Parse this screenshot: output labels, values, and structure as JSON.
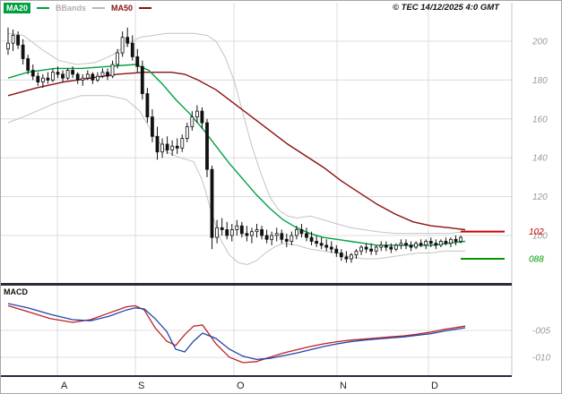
{
  "header": {
    "legend": [
      {
        "label": "MA20",
        "color": "#00a040"
      },
      {
        "label": "BBands",
        "color": "#b0b0b0"
      },
      {
        "label": "MA50",
        "color": "#8b1010"
      }
    ],
    "copyright": "© TEC 14/12/2025 4:0 GMT"
  },
  "colors": {
    "grid": "#dcdcdc",
    "axis_text": "#9a9a9a",
    "candle": "#111111",
    "ma20": "#00a040",
    "ma50": "#8b1010",
    "bband": "#c4c4c4",
    "macd_line": "#bb2222",
    "macd_signal": "#2244aa",
    "divider": "#2a2a3a",
    "month_text": "#222222"
  },
  "chart_data": [
    {
      "type": "candlestick",
      "title": "",
      "xlabel": "",
      "ylabel": "",
      "grid": true,
      "ylim": [
        83,
        212
      ],
      "y_ticks": [
        200,
        180,
        160,
        140,
        120,
        100
      ],
      "x_month_labels": [
        "A",
        "S",
        "O",
        "N",
        "D"
      ],
      "month_grid_x": [
        63,
        150,
        260,
        375,
        477
      ],
      "month_label_x": [
        67,
        153,
        263,
        378,
        480
      ],
      "levels": [
        {
          "label": "102",
          "value": 102,
          "color": "#cc0000"
        },
        {
          "label": "088",
          "value": 88,
          "color": "#009900"
        }
      ],
      "candles_ohlc": [
        [
          196,
          207,
          193,
          199
        ],
        [
          199,
          206,
          195,
          203
        ],
        [
          203,
          205,
          196,
          198
        ],
        [
          198,
          201,
          188,
          191
        ],
        [
          191,
          193,
          183,
          185
        ],
        [
          185,
          188,
          180,
          182
        ],
        [
          182,
          184,
          177,
          179
        ],
        [
          179,
          183,
          176,
          181
        ],
        [
          181,
          184,
          178,
          180
        ],
        [
          180,
          186,
          179,
          184
        ],
        [
          184,
          187,
          181,
          183
        ],
        [
          183,
          185,
          179,
          181
        ],
        [
          181,
          186,
          180,
          185
        ],
        [
          185,
          187,
          181,
          183
        ],
        [
          183,
          184,
          178,
          180
        ],
        [
          180,
          183,
          177,
          181
        ],
        [
          181,
          185,
          180,
          183
        ],
        [
          183,
          184,
          178,
          180
        ],
        [
          180,
          184,
          179,
          182
        ],
        [
          182,
          186,
          181,
          184
        ],
        [
          184,
          186,
          180,
          182
        ],
        [
          182,
          190,
          181,
          188
        ],
        [
          188,
          196,
          186,
          194
        ],
        [
          194,
          205,
          192,
          202
        ],
        [
          202,
          207,
          197,
          199
        ],
        [
          199,
          203,
          190,
          192
        ],
        [
          192,
          196,
          184,
          187
        ],
        [
          187,
          190,
          170,
          173
        ],
        [
          173,
          176,
          158,
          161
        ],
        [
          161,
          165,
          148,
          151
        ],
        [
          151,
          156,
          139,
          143
        ],
        [
          143,
          150,
          140,
          147
        ],
        [
          147,
          151,
          142,
          144
        ],
        [
          144,
          149,
          141,
          146
        ],
        [
          146,
          150,
          142,
          145
        ],
        [
          145,
          152,
          143,
          150
        ],
        [
          150,
          158,
          148,
          156
        ],
        [
          156,
          164,
          154,
          161
        ],
        [
          161,
          167,
          158,
          164
        ],
        [
          164,
          166,
          155,
          158
        ],
        [
          158,
          160,
          130,
          134
        ],
        [
          134,
          136,
          93,
          99
        ],
        [
          99,
          108,
          96,
          104
        ],
        [
          104,
          109,
          100,
          103
        ],
        [
          103,
          107,
          98,
          100
        ],
        [
          100,
          106,
          97,
          103
        ],
        [
          103,
          108,
          100,
          105
        ],
        [
          105,
          107,
          99,
          101
        ],
        [
          101,
          105,
          97,
          100
        ],
        [
          100,
          104,
          96,
          102
        ],
        [
          102,
          106,
          99,
          103
        ],
        [
          103,
          105,
          98,
          100
        ],
        [
          100,
          103,
          96,
          98
        ],
        [
          98,
          102,
          95,
          100
        ],
        [
          100,
          104,
          97,
          101
        ],
        [
          101,
          103,
          96,
          98
        ],
        [
          98,
          101,
          94,
          97
        ],
        [
          97,
          102,
          95,
          100
        ],
        [
          100,
          105,
          98,
          103
        ],
        [
          103,
          106,
          99,
          101
        ],
        [
          101,
          104,
          97,
          99
        ],
        [
          99,
          102,
          95,
          97
        ],
        [
          97,
          100,
          94,
          96
        ],
        [
          96,
          99,
          93,
          95
        ],
        [
          95,
          98,
          92,
          94
        ],
        [
          94,
          97,
          91,
          93
        ],
        [
          93,
          95,
          89,
          91
        ],
        [
          91,
          93,
          87,
          89
        ],
        [
          89,
          92,
          86,
          88
        ],
        [
          88,
          91,
          86,
          90
        ],
        [
          90,
          93,
          88,
          92
        ],
        [
          92,
          95,
          90,
          94
        ],
        [
          94,
          96,
          91,
          93
        ],
        [
          93,
          96,
          90,
          92
        ],
        [
          92,
          95,
          90,
          94
        ],
        [
          94,
          97,
          92,
          95
        ],
        [
          95,
          97,
          92,
          94
        ],
        [
          94,
          96,
          91,
          93
        ],
        [
          93,
          96,
          92,
          95
        ],
        [
          95,
          98,
          93,
          96
        ],
        [
          96,
          98,
          93,
          95
        ],
        [
          95,
          97,
          92,
          94
        ],
        [
          94,
          97,
          93,
          96
        ],
        [
          96,
          98,
          94,
          95
        ],
        [
          95,
          98,
          93,
          97
        ],
        [
          97,
          99,
          94,
          96
        ],
        [
          96,
          98,
          93,
          95
        ],
        [
          95,
          98,
          94,
          97
        ],
        [
          97,
          99,
          95,
          96
        ],
        [
          96,
          99,
          94,
          98
        ],
        [
          98,
          100,
          95,
          97
        ],
        [
          97,
          100,
          96,
          99
        ]
      ],
      "ma20": [
        [
          8,
          181
        ],
        [
          30,
          184
        ],
        [
          60,
          186
        ],
        [
          90,
          186
        ],
        [
          120,
          187
        ],
        [
          150,
          188
        ],
        [
          165,
          185
        ],
        [
          180,
          178
        ],
        [
          195,
          170
        ],
        [
          210,
          163
        ],
        [
          225,
          155
        ],
        [
          240,
          146
        ],
        [
          255,
          137
        ],
        [
          270,
          129
        ],
        [
          285,
          121
        ],
        [
          300,
          114
        ],
        [
          315,
          108
        ],
        [
          330,
          104
        ],
        [
          345,
          101
        ],
        [
          360,
          99
        ],
        [
          375,
          98
        ],
        [
          390,
          97
        ],
        [
          405,
          96
        ],
        [
          420,
          95
        ],
        [
          440,
          95
        ],
        [
          460,
          95
        ],
        [
          480,
          95
        ],
        [
          500,
          96
        ],
        [
          518,
          97
        ]
      ],
      "ma50": [
        [
          8,
          172
        ],
        [
          40,
          176
        ],
        [
          70,
          179
        ],
        [
          100,
          181
        ],
        [
          130,
          183
        ],
        [
          160,
          184
        ],
        [
          190,
          184
        ],
        [
          205,
          183
        ],
        [
          220,
          180
        ],
        [
          240,
          175
        ],
        [
          260,
          168
        ],
        [
          280,
          161
        ],
        [
          300,
          154
        ],
        [
          320,
          147
        ],
        [
          340,
          141
        ],
        [
          360,
          135
        ],
        [
          380,
          128
        ],
        [
          400,
          122
        ],
        [
          420,
          116
        ],
        [
          440,
          111
        ],
        [
          460,
          107
        ],
        [
          480,
          105
        ],
        [
          500,
          104
        ],
        [
          518,
          103
        ]
      ],
      "bb_upper": [
        [
          8,
          204
        ],
        [
          25,
          203
        ],
        [
          45,
          196
        ],
        [
          65,
          190
        ],
        [
          85,
          188
        ],
        [
          105,
          189
        ],
        [
          125,
          193
        ],
        [
          140,
          198
        ],
        [
          155,
          202
        ],
        [
          170,
          203
        ],
        [
          185,
          204
        ],
        [
          200,
          204
        ],
        [
          215,
          204
        ],
        [
          230,
          203
        ],
        [
          240,
          200
        ],
        [
          250,
          192
        ],
        [
          260,
          180
        ],
        [
          270,
          163
        ],
        [
          280,
          146
        ],
        [
          290,
          132
        ],
        [
          300,
          120
        ],
        [
          310,
          113
        ],
        [
          320,
          110
        ],
        [
          330,
          109
        ],
        [
          345,
          110
        ],
        [
          360,
          108
        ],
        [
          375,
          106
        ],
        [
          390,
          104
        ],
        [
          405,
          103
        ],
        [
          420,
          102
        ],
        [
          440,
          101
        ],
        [
          460,
          101
        ],
        [
          480,
          101
        ],
        [
          500,
          101
        ],
        [
          518,
          102
        ]
      ],
      "bb_lower": [
        [
          8,
          158
        ],
        [
          30,
          162
        ],
        [
          60,
          168
        ],
        [
          90,
          172
        ],
        [
          120,
          172
        ],
        [
          140,
          170
        ],
        [
          155,
          164
        ],
        [
          170,
          152
        ],
        [
          185,
          143
        ],
        [
          200,
          140
        ],
        [
          215,
          138
        ],
        [
          225,
          128
        ],
        [
          235,
          112
        ],
        [
          245,
          98
        ],
        [
          255,
          90
        ],
        [
          265,
          86
        ],
        [
          275,
          85
        ],
        [
          285,
          87
        ],
        [
          295,
          91
        ],
        [
          305,
          94
        ],
        [
          315,
          96
        ],
        [
          330,
          95
        ],
        [
          345,
          93
        ],
        [
          360,
          92
        ],
        [
          375,
          91
        ],
        [
          390,
          89
        ],
        [
          405,
          88
        ],
        [
          420,
          88
        ],
        [
          435,
          89
        ],
        [
          450,
          90
        ],
        [
          465,
          91
        ],
        [
          480,
          91
        ],
        [
          495,
          92
        ],
        [
          518,
          92
        ]
      ]
    },
    {
      "type": "line",
      "title": "MACD",
      "grid": true,
      "ylim": [
        -0.13,
        0.03
      ],
      "y_ticks": [
        {
          "label": "-005",
          "value": -0.05
        },
        {
          "label": "-010",
          "value": -0.1
        }
      ],
      "series": [
        {
          "name": "MACD",
          "points": [
            [
              8,
              -0.004
            ],
            [
              30,
              -0.015
            ],
            [
              55,
              -0.028
            ],
            [
              80,
              -0.035
            ],
            [
              100,
              -0.03
            ],
            [
              120,
              -0.018
            ],
            [
              140,
              -0.006
            ],
            [
              150,
              -0.004
            ],
            [
              160,
              -0.012
            ],
            [
              172,
              -0.045
            ],
            [
              185,
              -0.07
            ],
            [
              195,
              -0.078
            ],
            [
              205,
              -0.058
            ],
            [
              215,
              -0.042
            ],
            [
              225,
              -0.04
            ],
            [
              240,
              -0.075
            ],
            [
              255,
              -0.1
            ],
            [
              270,
              -0.11
            ],
            [
              285,
              -0.108
            ],
            [
              300,
              -0.1
            ],
            [
              315,
              -0.092
            ],
            [
              330,
              -0.086
            ],
            [
              345,
              -0.08
            ],
            [
              360,
              -0.075
            ],
            [
              375,
              -0.071
            ],
            [
              390,
              -0.068
            ],
            [
              405,
              -0.066
            ],
            [
              420,
              -0.064
            ],
            [
              435,
              -0.062
            ],
            [
              450,
              -0.06
            ],
            [
              465,
              -0.057
            ],
            [
              480,
              -0.053
            ],
            [
              495,
              -0.048
            ],
            [
              518,
              -0.042
            ]
          ]
        },
        {
          "name": "signal",
          "points": [
            [
              8,
              0.0
            ],
            [
              30,
              -0.008
            ],
            [
              55,
              -0.02
            ],
            [
              80,
              -0.03
            ],
            [
              100,
              -0.032
            ],
            [
              120,
              -0.024
            ],
            [
              140,
              -0.012
            ],
            [
              150,
              -0.008
            ],
            [
              160,
              -0.01
            ],
            [
              172,
              -0.028
            ],
            [
              185,
              -0.052
            ],
            [
              195,
              -0.085
            ],
            [
              205,
              -0.09
            ],
            [
              215,
              -0.07
            ],
            [
              225,
              -0.055
            ],
            [
              240,
              -0.065
            ],
            [
              255,
              -0.085
            ],
            [
              270,
              -0.098
            ],
            [
              285,
              -0.104
            ],
            [
              300,
              -0.102
            ],
            [
              315,
              -0.097
            ],
            [
              330,
              -0.092
            ],
            [
              345,
              -0.086
            ],
            [
              360,
              -0.08
            ],
            [
              375,
              -0.075
            ],
            [
              390,
              -0.071
            ],
            [
              405,
              -0.068
            ],
            [
              420,
              -0.066
            ],
            [
              435,
              -0.064
            ],
            [
              450,
              -0.062
            ],
            [
              465,
              -0.059
            ],
            [
              480,
              -0.056
            ],
            [
              495,
              -0.051
            ],
            [
              518,
              -0.045
            ]
          ]
        }
      ]
    }
  ]
}
